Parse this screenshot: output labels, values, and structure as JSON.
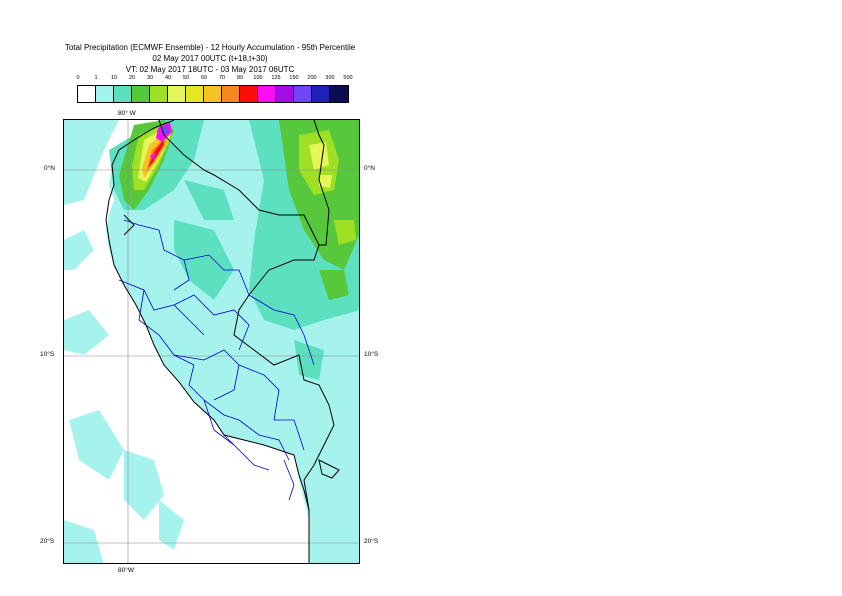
{
  "title": {
    "line1": "Total Precipitation (ECMWF Ensemble) - 12 Hourly Accumulation - 95th Percentile",
    "line2": "02 May 2017 00UTC (t+18,t+30)",
    "line3": "VT: 02 May 2017 18UTC - 03 May 2017 06UTC"
  },
  "legend": {
    "labels": [
      "0",
      "1",
      "10",
      "20",
      "30",
      "40",
      "50",
      "60",
      "70",
      "80",
      "100",
      "125",
      "150",
      "200",
      "300",
      "500"
    ],
    "colors": [
      "#ffffff",
      "#a6f3ee",
      "#5de0c0",
      "#57c83c",
      "#9fe024",
      "#e4f659",
      "#e7e624",
      "#f6c325",
      "#f7881f",
      "#fb0d0d",
      "#fc0df6",
      "#a30de4",
      "#6e46f4",
      "#2020b8",
      "#0c0c52"
    ]
  },
  "axes": {
    "lon_top": "80° W",
    "lon_bottom": "80°W",
    "lat_left": [
      "0°N",
      "10°S",
      "20°S"
    ],
    "lat_right": [
      "0°N",
      "10°S",
      "20°S"
    ]
  },
  "map": {
    "ocean_color": "#ffffff",
    "land_base_color": "#a6f3ee",
    "border_color_country": "#000000",
    "border_color_region": "#0000cc"
  }
}
